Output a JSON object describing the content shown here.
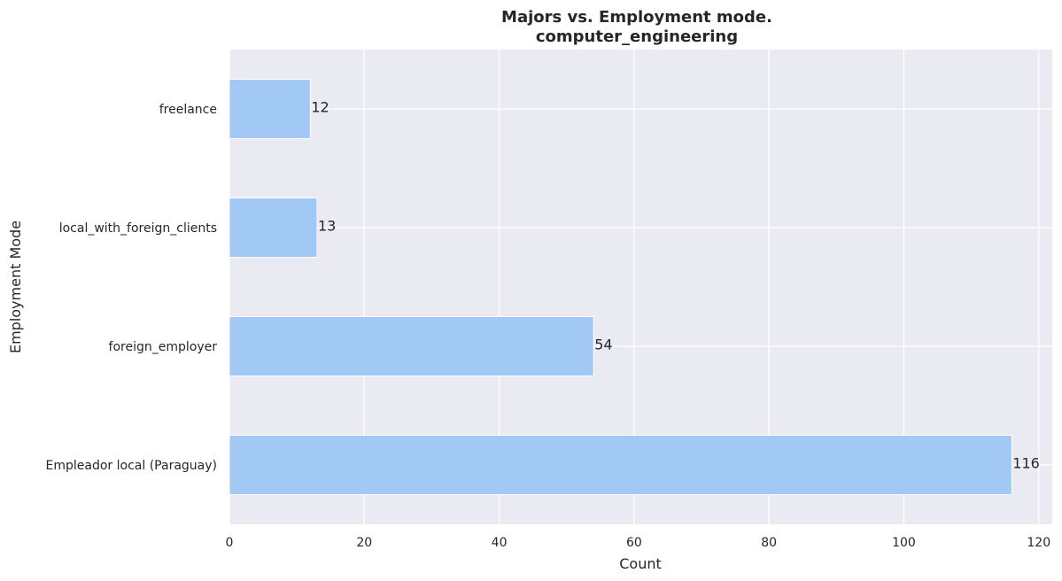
{
  "chart_data": {
    "type": "bar",
    "orientation": "horizontal",
    "title": "Majors vs. Employment mode.",
    "subtitle": "computer_engineering",
    "xlabel": "Count",
    "ylabel": "Employment Mode",
    "categories": [
      "freelance",
      "local_with_foreign_clients",
      "foreign_employer",
      "Empleador local (Paraguay)"
    ],
    "values": [
      12,
      13,
      54,
      116
    ],
    "data_labels": [
      "12",
      "13",
      "54",
      "116"
    ],
    "xlim": [
      0,
      122
    ],
    "xticks": [
      0,
      20,
      40,
      60,
      80,
      100,
      120
    ],
    "xtick_labels": [
      "0",
      "20",
      "40",
      "60",
      "80",
      "100",
      "120"
    ],
    "grid": true,
    "legend": "none",
    "colors": {
      "bar": "#a1c9f4",
      "background": "#eaeaf2",
      "grid": "#ffffff",
      "text": "#262626"
    }
  }
}
